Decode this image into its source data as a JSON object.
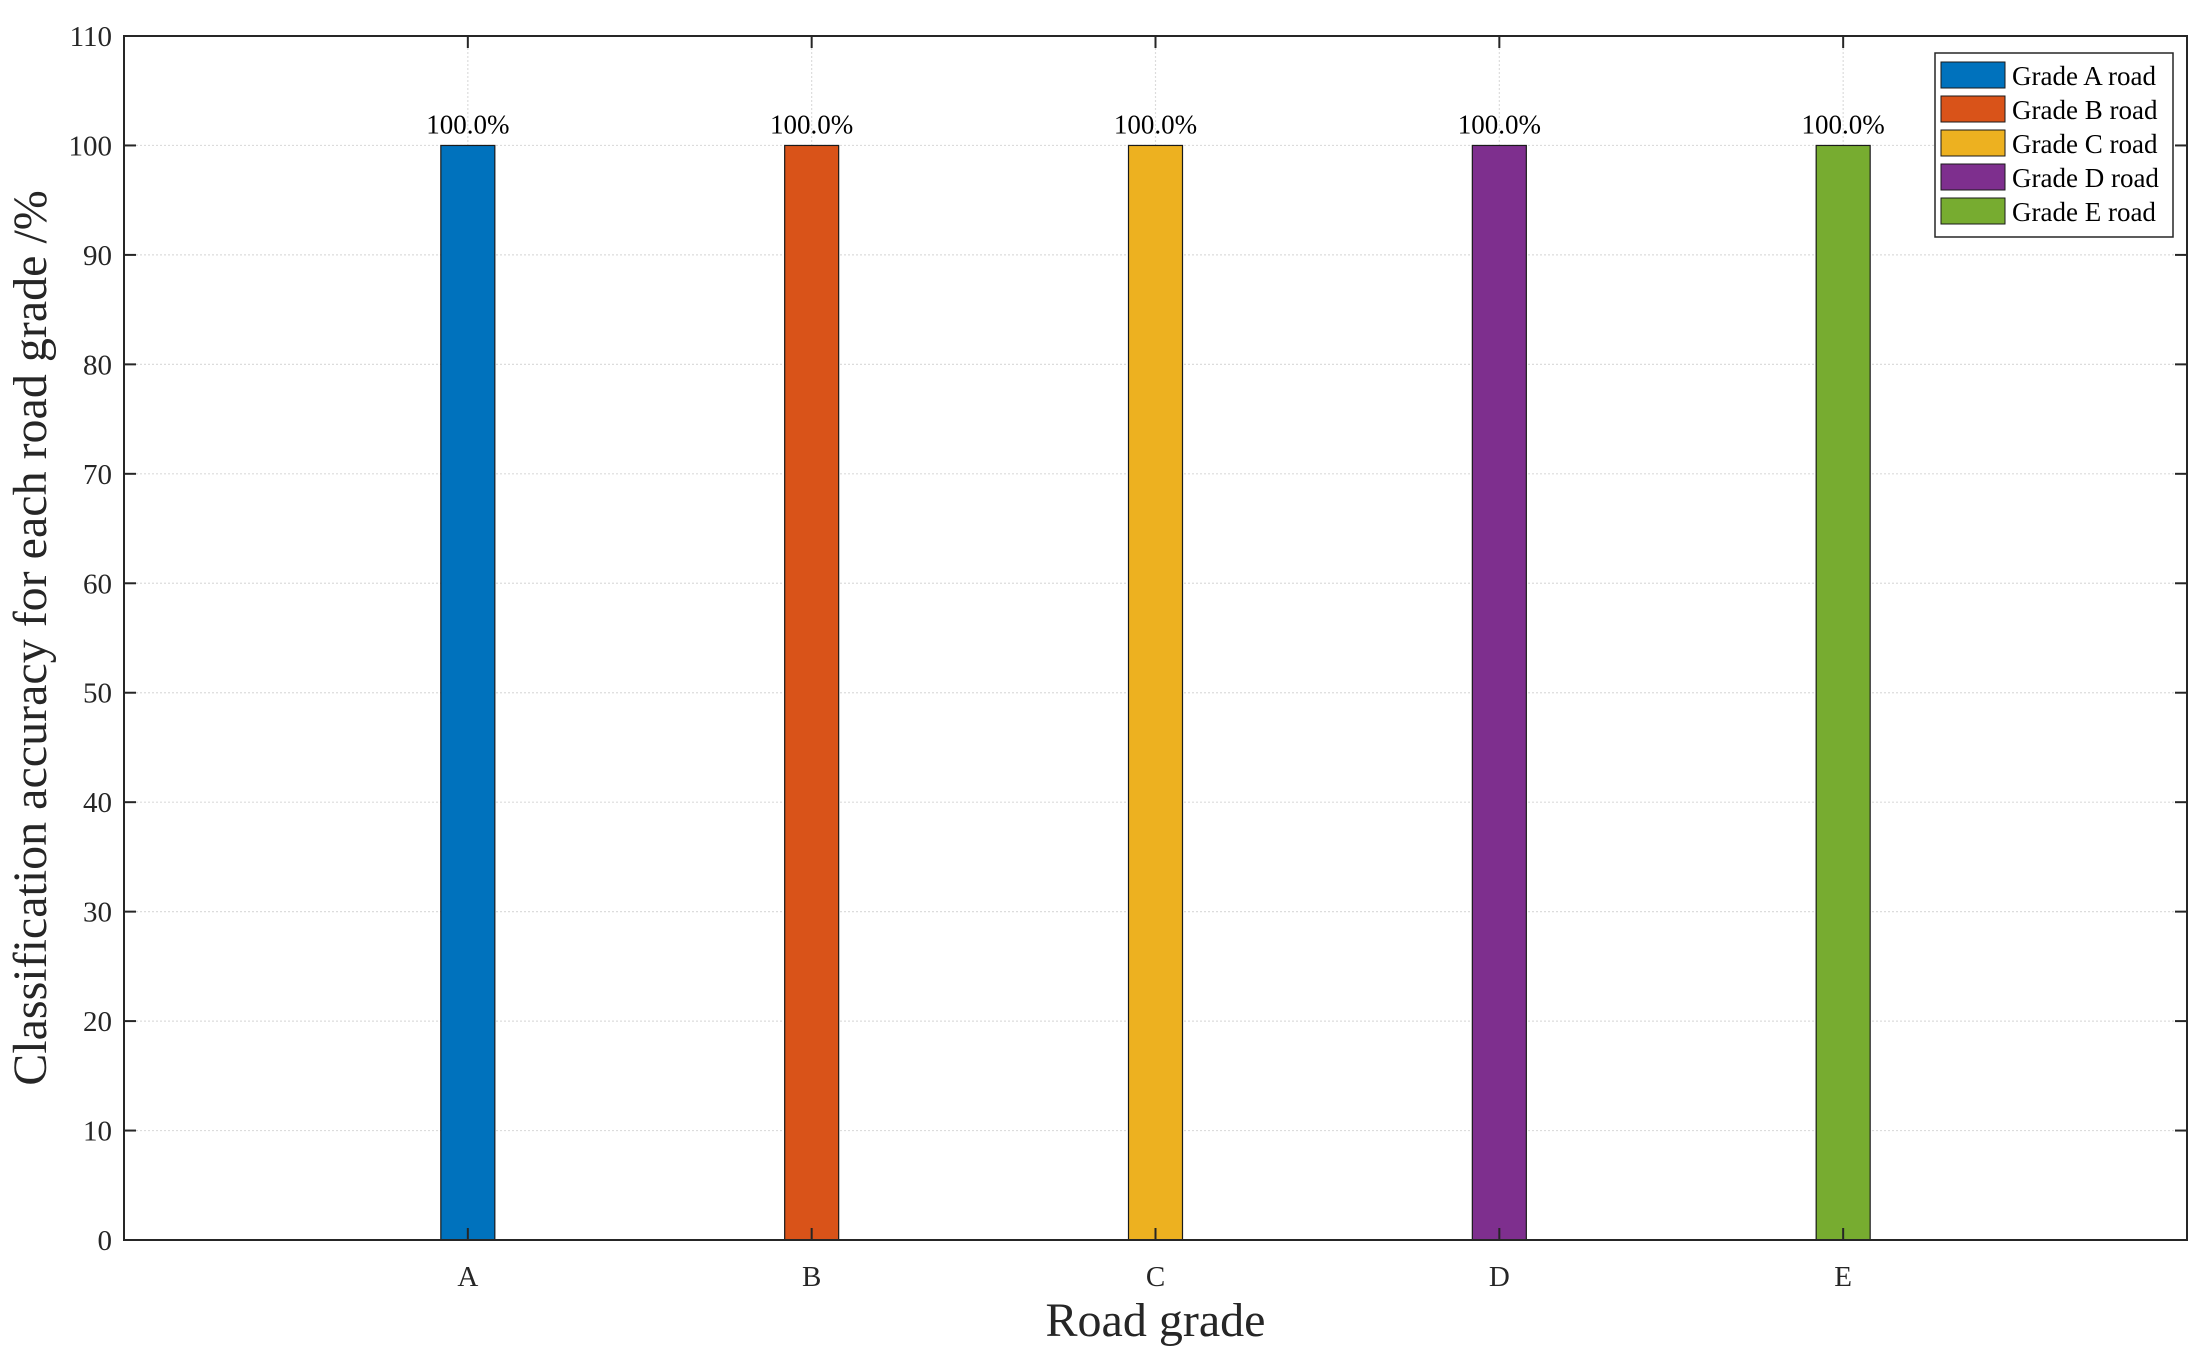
{
  "chart_data": {
    "type": "bar",
    "categories": [
      "A",
      "B",
      "C",
      "D",
      "E"
    ],
    "series": [
      {
        "name": "Grade A road",
        "category": "A",
        "value": 100.0,
        "label": "100.0%",
        "color": "#0072BD"
      },
      {
        "name": "Grade B road",
        "category": "B",
        "value": 100.0,
        "label": "100.0%",
        "color": "#D95319"
      },
      {
        "name": "Grade C road",
        "category": "C",
        "value": 100.0,
        "label": "100.0%",
        "color": "#EDB120"
      },
      {
        "name": "Grade D road",
        "category": "D",
        "value": 100.0,
        "label": "100.0%",
        "color": "#7E2F8E"
      },
      {
        "name": "Grade E road",
        "category": "E",
        "value": 100.0,
        "label": "100.0%",
        "color": "#77AC30"
      }
    ],
    "title": "",
    "xlabel": "Road grade",
    "ylabel": "Classification accuracy for each road grade /%",
    "ylim": [
      0,
      110
    ],
    "yticks": [
      0,
      10,
      20,
      30,
      40,
      50,
      60,
      70,
      80,
      90,
      100,
      110
    ],
    "grid": true,
    "legend_position": "top-right"
  }
}
